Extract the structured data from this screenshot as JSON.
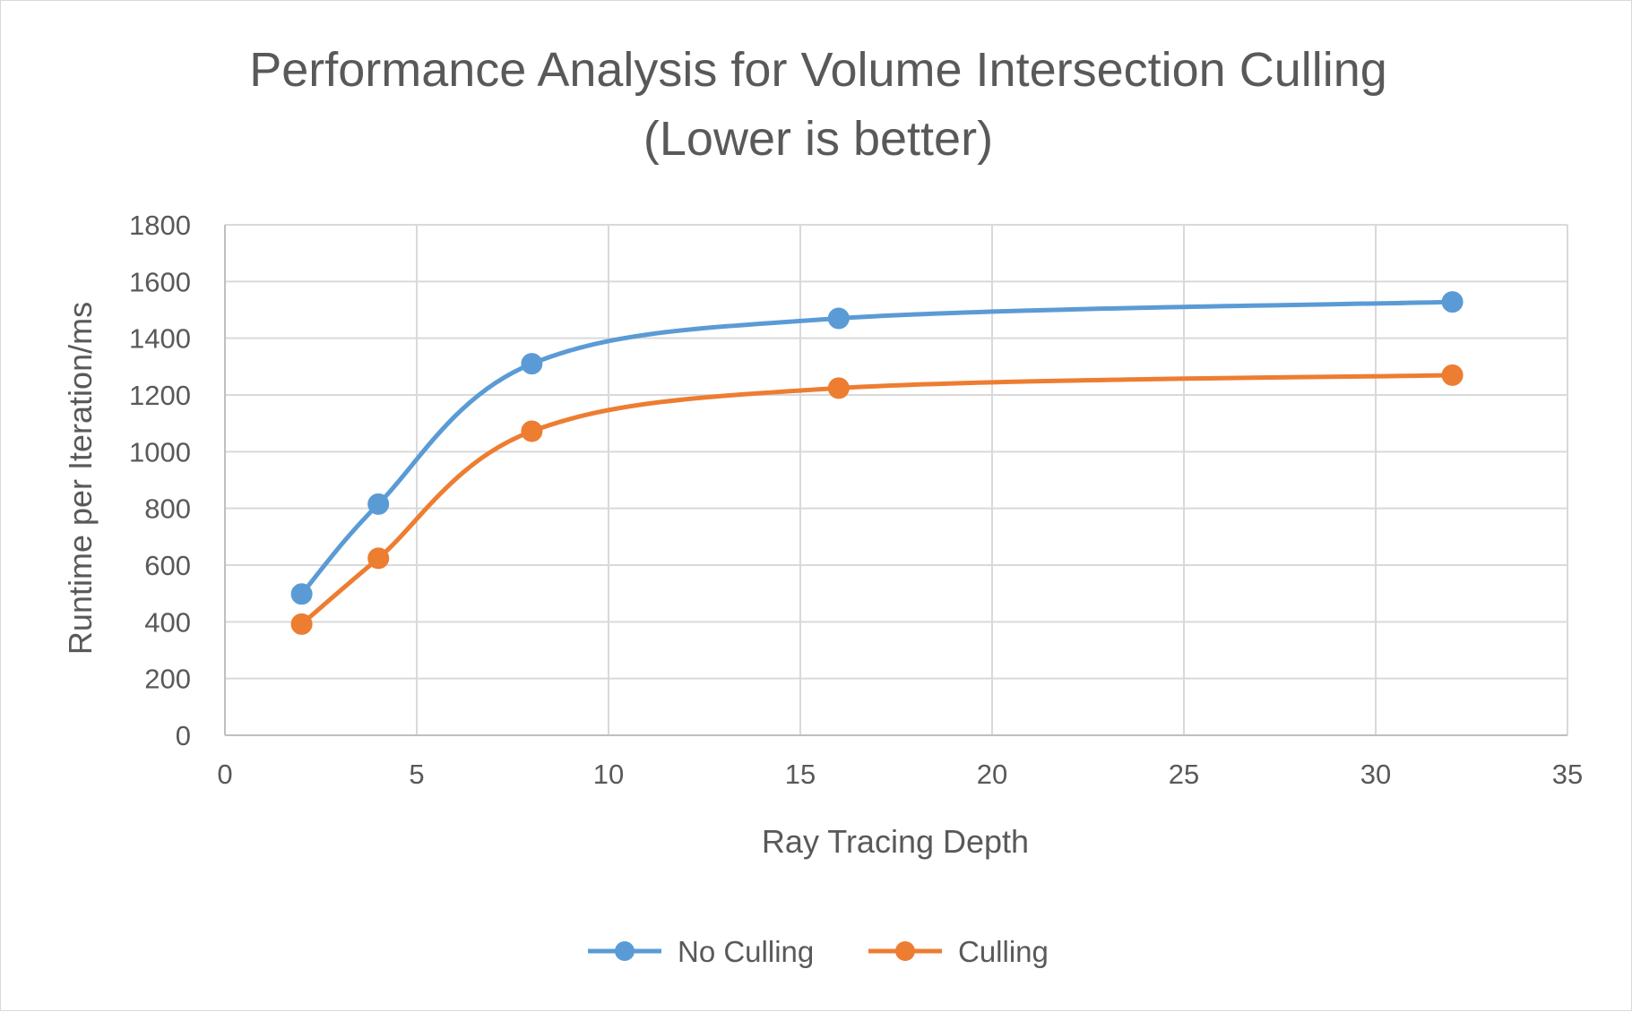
{
  "chart_data": {
    "type": "scatter",
    "title": "Performance Analysis for Volume Intersection Culling",
    "subtitle": "(Lower is better)",
    "xlabel": "Ray Tracing Depth",
    "ylabel": "Runtime per Iteration/ms",
    "xlim": [
      0,
      35
    ],
    "ylim": [
      0,
      1800
    ],
    "xticks": [
      0,
      5,
      10,
      15,
      20,
      25,
      30,
      35
    ],
    "yticks": [
      0,
      200,
      400,
      600,
      800,
      1000,
      1200,
      1400,
      1600,
      1800
    ],
    "grid": true,
    "smooth_lines": true,
    "legend_position": "bottom",
    "series": [
      {
        "name": "No Culling",
        "color": "#5B9BD5",
        "x": [
          2,
          4,
          8,
          16,
          32
        ],
        "y": [
          498,
          815,
          1310,
          1470,
          1528
        ]
      },
      {
        "name": "Culling",
        "color": "#ED7D31",
        "x": [
          2,
          4,
          8,
          16,
          32
        ],
        "y": [
          392,
          624,
          1072,
          1224,
          1270
        ]
      }
    ]
  }
}
